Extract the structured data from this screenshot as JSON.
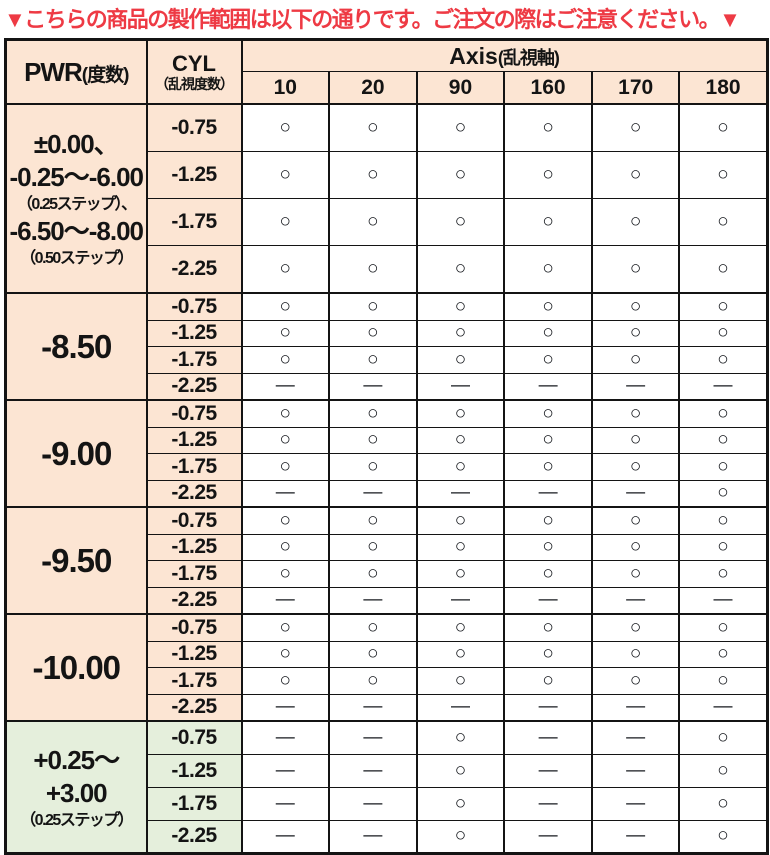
{
  "title": "▼こちらの商品の製作範囲は以下の通りです。ご注文の際はご注意ください。▼",
  "colors": {
    "accent_red": "#ee3a44",
    "header_bg_peach": "#fce5d3",
    "plus_power_bg_green": "#e5efdc",
    "border": "#141414"
  },
  "legend": {
    "available": "○",
    "unavailable": "—"
  },
  "table": {
    "header": {
      "pwr_label": "PWR",
      "pwr_sub": "(度数)",
      "cyl_label": "CYL",
      "cyl_sub": "（乱視度数）",
      "axis_label": "Axis",
      "axis_sub": "(乱視軸)",
      "axis_values": [
        "10",
        "20",
        "90",
        "160",
        "170",
        "180"
      ]
    },
    "groups": [
      {
        "theme": "peach",
        "row_size": "tall",
        "pwr_lines": [
          {
            "text": "±0.00、",
            "size": "large"
          },
          {
            "text": "-0.25〜-6.00",
            "size": "large"
          },
          {
            "text": "（0.25ステップ）、",
            "size": "small"
          },
          {
            "text": "-6.50〜-8.00",
            "size": "large"
          },
          {
            "text": "（0.50ステップ）",
            "size": "small"
          }
        ],
        "rows": [
          {
            "cyl": "-0.75",
            "axes": [
              "○",
              "○",
              "○",
              "○",
              "○",
              "○"
            ]
          },
          {
            "cyl": "-1.25",
            "axes": [
              "○",
              "○",
              "○",
              "○",
              "○",
              "○"
            ]
          },
          {
            "cyl": "-1.75",
            "axes": [
              "○",
              "○",
              "○",
              "○",
              "○",
              "○"
            ]
          },
          {
            "cyl": "-2.25",
            "axes": [
              "○",
              "○",
              "○",
              "○",
              "○",
              "○"
            ]
          }
        ]
      },
      {
        "theme": "peach",
        "row_size": "compact",
        "pwr_lines": [
          {
            "text": "-8.50",
            "size": "xlarge"
          }
        ],
        "rows": [
          {
            "cyl": "-0.75",
            "axes": [
              "○",
              "○",
              "○",
              "○",
              "○",
              "○"
            ]
          },
          {
            "cyl": "-1.25",
            "axes": [
              "○",
              "○",
              "○",
              "○",
              "○",
              "○"
            ]
          },
          {
            "cyl": "-1.75",
            "axes": [
              "○",
              "○",
              "○",
              "○",
              "○",
              "○"
            ]
          },
          {
            "cyl": "-2.25",
            "axes": [
              "—",
              "—",
              "—",
              "—",
              "—",
              "—"
            ]
          }
        ]
      },
      {
        "theme": "peach",
        "row_size": "compact",
        "pwr_lines": [
          {
            "text": "-9.00",
            "size": "xlarge"
          }
        ],
        "rows": [
          {
            "cyl": "-0.75",
            "axes": [
              "○",
              "○",
              "○",
              "○",
              "○",
              "○"
            ]
          },
          {
            "cyl": "-1.25",
            "axes": [
              "○",
              "○",
              "○",
              "○",
              "○",
              "○"
            ]
          },
          {
            "cyl": "-1.75",
            "axes": [
              "○",
              "○",
              "○",
              "○",
              "○",
              "○"
            ]
          },
          {
            "cyl": "-2.25",
            "axes": [
              "—",
              "—",
              "—",
              "—",
              "—",
              "○"
            ]
          }
        ]
      },
      {
        "theme": "peach",
        "row_size": "compact",
        "pwr_lines": [
          {
            "text": "-9.50",
            "size": "xlarge"
          }
        ],
        "rows": [
          {
            "cyl": "-0.75",
            "axes": [
              "○",
              "○",
              "○",
              "○",
              "○",
              "○"
            ]
          },
          {
            "cyl": "-1.25",
            "axes": [
              "○",
              "○",
              "○",
              "○",
              "○",
              "○"
            ]
          },
          {
            "cyl": "-1.75",
            "axes": [
              "○",
              "○",
              "○",
              "○",
              "○",
              "○"
            ]
          },
          {
            "cyl": "-2.25",
            "axes": [
              "—",
              "—",
              "—",
              "—",
              "—",
              "—"
            ]
          }
        ]
      },
      {
        "theme": "peach",
        "row_size": "compact",
        "pwr_lines": [
          {
            "text": "-10.00",
            "size": "xlarge"
          }
        ],
        "rows": [
          {
            "cyl": "-0.75",
            "axes": [
              "○",
              "○",
              "○",
              "○",
              "○",
              "○"
            ]
          },
          {
            "cyl": "-1.25",
            "axes": [
              "○",
              "○",
              "○",
              "○",
              "○",
              "○"
            ]
          },
          {
            "cyl": "-1.75",
            "axes": [
              "○",
              "○",
              "○",
              "○",
              "○",
              "○"
            ]
          },
          {
            "cyl": "-2.25",
            "axes": [
              "—",
              "—",
              "—",
              "—",
              "—",
              "—"
            ]
          }
        ]
      },
      {
        "theme": "green",
        "row_size": "medium",
        "pwr_lines": [
          {
            "text": "+0.25〜",
            "size": "large"
          },
          {
            "text": "+3.00",
            "size": "large"
          },
          {
            "text": "（0.25ステップ）",
            "size": "small"
          }
        ],
        "rows": [
          {
            "cyl": "-0.75",
            "axes": [
              "—",
              "—",
              "○",
              "—",
              "—",
              "○"
            ]
          },
          {
            "cyl": "-1.25",
            "axes": [
              "—",
              "—",
              "○",
              "—",
              "—",
              "○"
            ]
          },
          {
            "cyl": "-1.75",
            "axes": [
              "—",
              "—",
              "○",
              "—",
              "—",
              "○"
            ]
          },
          {
            "cyl": "-2.25",
            "axes": [
              "—",
              "—",
              "○",
              "—",
              "—",
              "○"
            ]
          }
        ]
      }
    ]
  }
}
